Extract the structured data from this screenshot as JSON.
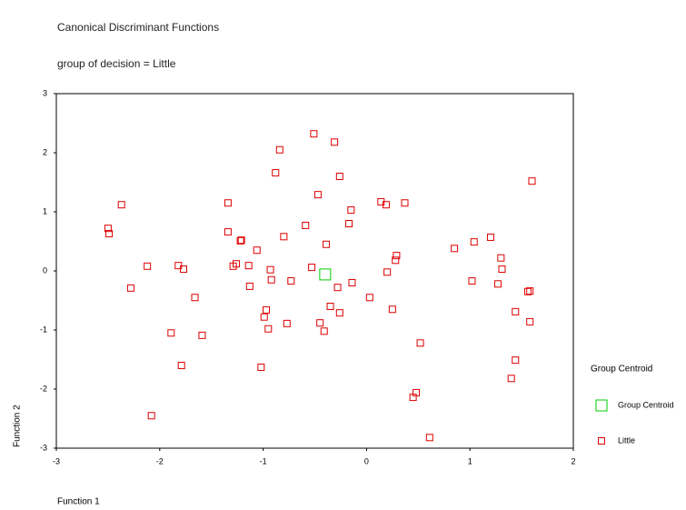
{
  "chart_data": {
    "type": "scatter",
    "title": "Canonical Discriminant Functions",
    "subtitle": "group of decision = Little",
    "x_label": "Function 1",
    "y_label": "Function 2",
    "legend_title": "Group Centroid",
    "legend_position": "right",
    "grid": false,
    "xlim": [
      -3,
      2
    ],
    "ylim": [
      -3,
      3
    ],
    "xticks": [
      -3,
      -2,
      -1,
      0,
      1,
      2
    ],
    "yticks": [
      -3,
      -2,
      -1,
      0,
      1,
      2,
      3
    ],
    "series": [
      {
        "name": "Group Centroid",
        "color": "#00cc00",
        "marker_size": 12,
        "x": [
          -0.4
        ],
        "y": [
          -0.06
        ]
      },
      {
        "name": "Little",
        "color": "#dd0000",
        "marker_size": 7,
        "x": [
          -0.51,
          -0.31,
          -0.84,
          -0.88,
          -0.26,
          1.6,
          -0.47,
          -2.37,
          -1.34,
          0.14,
          0.19,
          0.37,
          -0.15,
          -2.5,
          -2.49,
          -0.59,
          -0.17,
          -1.34,
          -1.21,
          -1.22,
          1.2,
          -0.8,
          1.04,
          -0.39,
          -1.06,
          0.85,
          0.29,
          0.28,
          1.3,
          -2.12,
          -1.82,
          -1.77,
          -1.26,
          -1.29,
          -1.14,
          -0.53,
          -0.93,
          1.31,
          0.2,
          -0.92,
          -0.73,
          -0.14,
          1.02,
          1.27,
          -2.28,
          -1.13,
          -0.28,
          1.56,
          1.58,
          -1.66,
          0.03,
          -0.35,
          -0.97,
          0.25,
          -0.26,
          1.44,
          -0.99,
          -0.45,
          -0.77,
          1.58,
          -0.95,
          -0.41,
          -1.89,
          -1.59,
          0.52,
          1.44,
          -1.79,
          -1.02,
          1.4,
          0.48,
          0.45,
          -2.08,
          0.61
        ],
        "y": [
          2.32,
          2.18,
          2.05,
          1.66,
          1.6,
          1.52,
          1.29,
          1.12,
          1.15,
          1.17,
          1.12,
          1.15,
          1.03,
          0.72,
          0.63,
          0.77,
          0.8,
          0.66,
          0.52,
          0.51,
          0.57,
          0.58,
          0.49,
          0.45,
          0.35,
          0.38,
          0.26,
          0.18,
          0.22,
          0.08,
          0.09,
          0.03,
          0.12,
          0.08,
          0.09,
          0.06,
          0.02,
          0.03,
          -0.02,
          -0.15,
          -0.17,
          -0.2,
          -0.17,
          -0.22,
          -0.29,
          -0.26,
          -0.28,
          -0.35,
          -0.34,
          -0.45,
          -0.45,
          -0.6,
          -0.66,
          -0.65,
          -0.71,
          -0.69,
          -0.78,
          -0.88,
          -0.89,
          -0.86,
          -0.98,
          -1.02,
          -1.05,
          -1.09,
          -1.22,
          -1.51,
          -1.6,
          -1.63,
          -1.82,
          -2.06,
          -2.14,
          -2.45,
          -2.82
        ]
      }
    ]
  }
}
